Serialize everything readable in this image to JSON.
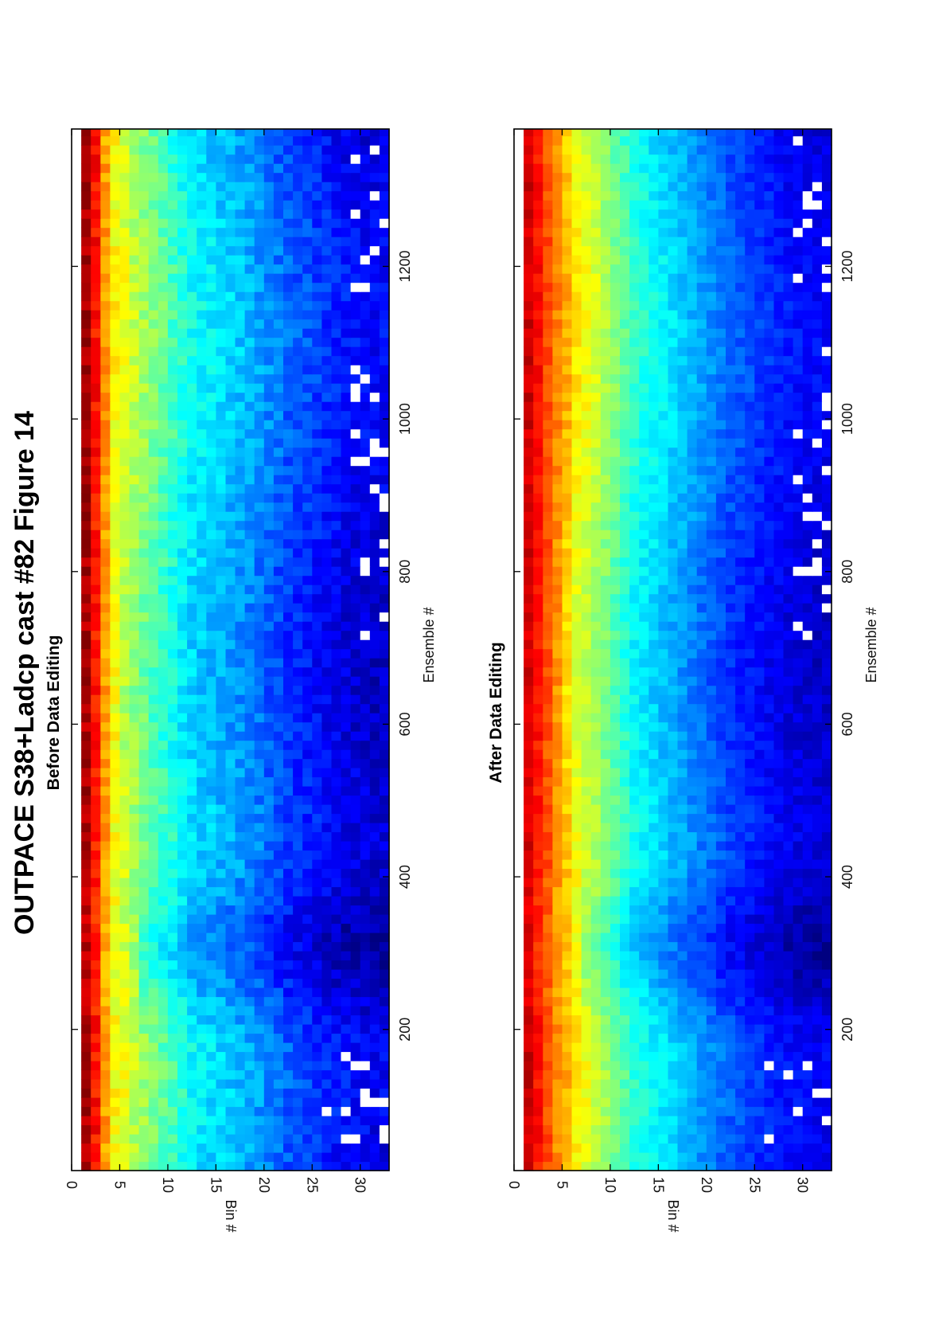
{
  "figure": {
    "title": "OUTPACE S38+Ladcp cast #82  Figure 14"
  },
  "chart_data": [
    {
      "type": "heatmap",
      "title": "Before Data Editing",
      "xlabel": "Ensemble #",
      "ylabel": "Bin #",
      "xlim": [
        15,
        1380
      ],
      "ylim": [
        0,
        33
      ],
      "x_ticks": [
        "200",
        "400",
        "600",
        "800",
        "1000",
        "1200"
      ],
      "y_ticks": [
        "0",
        "5",
        "10",
        "15",
        "20",
        "25",
        "30"
      ],
      "colormap": "jet",
      "grid": false,
      "edited": false,
      "profile": {
        "bins": [
          1,
          2,
          3,
          4,
          5,
          6,
          8,
          10,
          12,
          15,
          18,
          20,
          22,
          25,
          28,
          31,
          33
        ],
        "levels": [
          0.96,
          0.86,
          0.72,
          0.62,
          0.58,
          0.54,
          0.48,
          0.42,
          0.36,
          0.32,
          0.28,
          0.24,
          0.2,
          0.16,
          0.12,
          0.1,
          0.1
        ]
      },
      "missing_regions": [
        {
          "ensemble_range": [
            40,
            170
          ],
          "bins_from": 26
        },
        {
          "ensemble_range": [
            700,
            1380
          ],
          "bins_from": 29
        }
      ]
    },
    {
      "type": "heatmap",
      "title": "After Data Editing",
      "xlabel": "Ensemble #",
      "ylabel": "Bin #",
      "xlim": [
        15,
        1380
      ],
      "ylim": [
        0,
        33
      ],
      "x_ticks": [
        "200",
        "400",
        "600",
        "800",
        "1000",
        "1200"
      ],
      "y_ticks": [
        "0",
        "5",
        "10",
        "15",
        "20",
        "25",
        "30"
      ],
      "colormap": "jet",
      "grid": false,
      "edited": true,
      "profile": {
        "bins": [
          1,
          2,
          3,
          4,
          5,
          6,
          8,
          10,
          12,
          15,
          18,
          20,
          22,
          25,
          28,
          31,
          33
        ],
        "levels": [
          0.92,
          0.86,
          0.8,
          0.74,
          0.68,
          0.62,
          0.56,
          0.48,
          0.4,
          0.34,
          0.28,
          0.24,
          0.2,
          0.16,
          0.12,
          0.1,
          0.1
        ]
      },
      "missing_regions": [
        {
          "ensemble_range": [
            40,
            170
          ],
          "bins_from": 26
        },
        {
          "ensemble_range": [
            700,
            1380
          ],
          "bins_from": 29
        }
      ]
    }
  ]
}
